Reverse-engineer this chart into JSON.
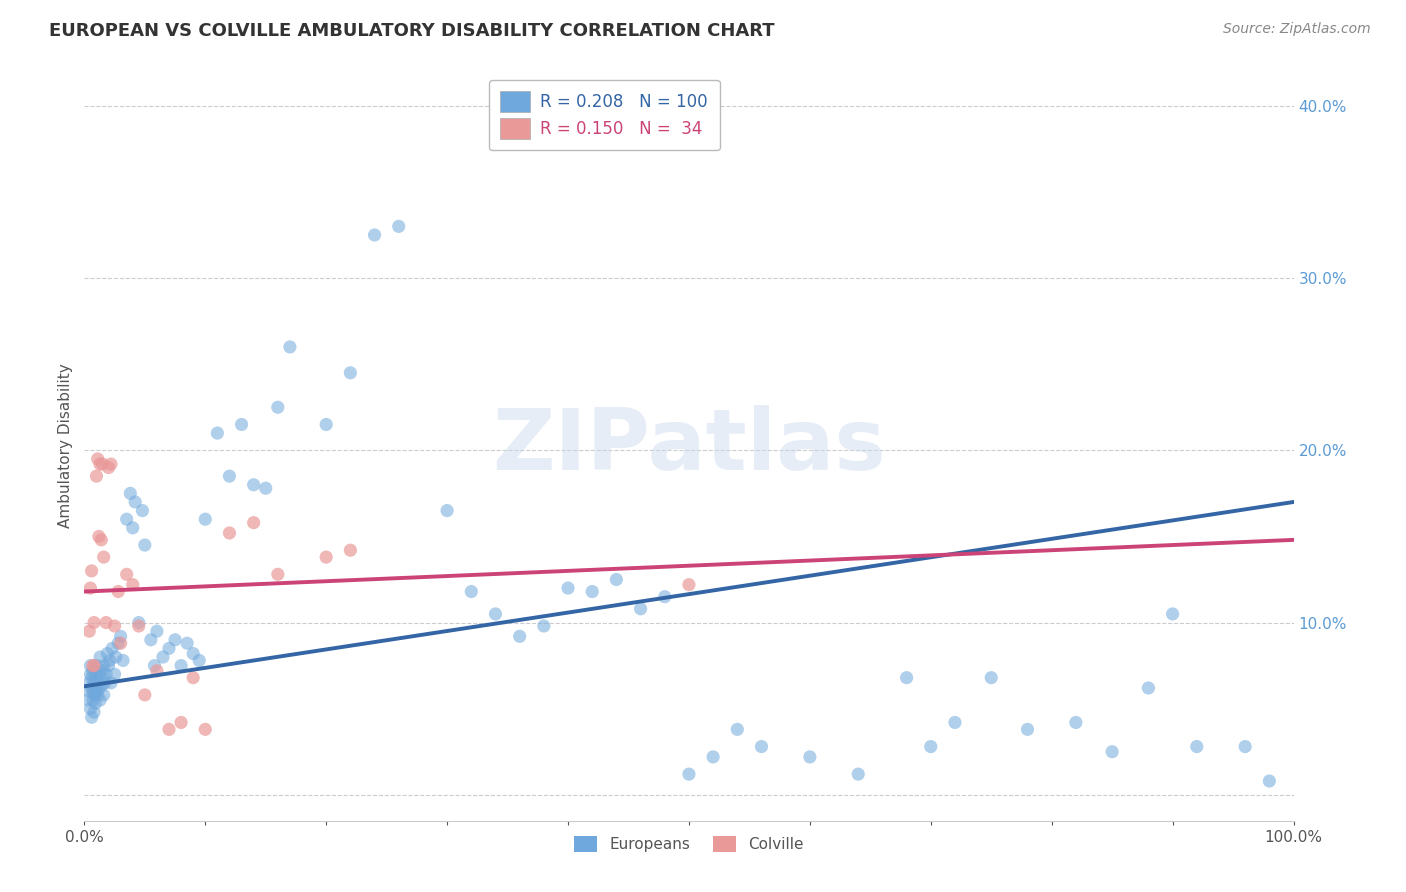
{
  "title": "EUROPEAN VS COLVILLE AMBULATORY DISABILITY CORRELATION CHART",
  "source": "Source: ZipAtlas.com",
  "ylabel": "Ambulatory Disability",
  "watermark": "ZIPatlas",
  "xlim": [
    0.0,
    1.0
  ],
  "ylim": [
    -0.015,
    0.42
  ],
  "xticks": [
    0.0,
    0.1,
    0.2,
    0.3,
    0.4,
    0.5,
    0.6,
    0.7,
    0.8,
    0.9,
    1.0
  ],
  "yticks": [
    0.0,
    0.1,
    0.2,
    0.3,
    0.4
  ],
  "grid_color": "#cccccc",
  "background_color": "#ffffff",
  "blue_color": "#6fa8dc",
  "pink_color": "#ea9999",
  "blue_line_color": "#3465a4",
  "pink_line_color": "#cc4477",
  "legend_R_blue": "0.208",
  "legend_N_blue": "100",
  "legend_R_pink": "0.150",
  "legend_N_pink": "34",
  "blue_trend_x0": 0.0,
  "blue_trend_y0": 0.063,
  "blue_trend_x1": 1.0,
  "blue_trend_y1": 0.17,
  "pink_trend_x0": 0.0,
  "pink_trend_y0": 0.118,
  "pink_trend_x1": 1.0,
  "pink_trend_y1": 0.148,
  "europeans_x": [
    0.003,
    0.004,
    0.004,
    0.005,
    0.005,
    0.005,
    0.006,
    0.006,
    0.006,
    0.007,
    0.007,
    0.007,
    0.008,
    0.008,
    0.008,
    0.009,
    0.009,
    0.009,
    0.01,
    0.01,
    0.011,
    0.011,
    0.012,
    0.012,
    0.013,
    0.013,
    0.014,
    0.015,
    0.015,
    0.016,
    0.016,
    0.017,
    0.018,
    0.019,
    0.02,
    0.021,
    0.022,
    0.023,
    0.025,
    0.026,
    0.028,
    0.03,
    0.032,
    0.035,
    0.038,
    0.04,
    0.042,
    0.045,
    0.048,
    0.05,
    0.055,
    0.058,
    0.06,
    0.065,
    0.07,
    0.075,
    0.08,
    0.085,
    0.09,
    0.095,
    0.1,
    0.11,
    0.12,
    0.13,
    0.14,
    0.15,
    0.16,
    0.17,
    0.2,
    0.22,
    0.24,
    0.26,
    0.3,
    0.32,
    0.34,
    0.36,
    0.38,
    0.4,
    0.42,
    0.44,
    0.46,
    0.48,
    0.5,
    0.52,
    0.54,
    0.56,
    0.6,
    0.64,
    0.68,
    0.7,
    0.72,
    0.75,
    0.78,
    0.82,
    0.85,
    0.88,
    0.9,
    0.92,
    0.96,
    0.98
  ],
  "europeans_y": [
    0.055,
    0.065,
    0.06,
    0.05,
    0.07,
    0.075,
    0.045,
    0.062,
    0.068,
    0.055,
    0.06,
    0.072,
    0.058,
    0.065,
    0.048,
    0.063,
    0.07,
    0.053,
    0.06,
    0.075,
    0.065,
    0.058,
    0.07,
    0.062,
    0.055,
    0.08,
    0.063,
    0.068,
    0.072,
    0.058,
    0.075,
    0.065,
    0.07,
    0.082,
    0.075,
    0.078,
    0.065,
    0.085,
    0.07,
    0.08,
    0.088,
    0.092,
    0.078,
    0.16,
    0.175,
    0.155,
    0.17,
    0.1,
    0.165,
    0.145,
    0.09,
    0.075,
    0.095,
    0.08,
    0.085,
    0.09,
    0.075,
    0.088,
    0.082,
    0.078,
    0.16,
    0.21,
    0.185,
    0.215,
    0.18,
    0.178,
    0.225,
    0.26,
    0.215,
    0.245,
    0.325,
    0.33,
    0.165,
    0.118,
    0.105,
    0.092,
    0.098,
    0.12,
    0.118,
    0.125,
    0.108,
    0.115,
    0.012,
    0.022,
    0.038,
    0.028,
    0.022,
    0.012,
    0.068,
    0.028,
    0.042,
    0.068,
    0.038,
    0.042,
    0.025,
    0.062,
    0.105,
    0.028,
    0.028,
    0.008
  ],
  "colville_x": [
    0.004,
    0.005,
    0.006,
    0.007,
    0.008,
    0.008,
    0.01,
    0.011,
    0.012,
    0.013,
    0.014,
    0.015,
    0.016,
    0.018,
    0.02,
    0.022,
    0.025,
    0.028,
    0.03,
    0.035,
    0.04,
    0.045,
    0.05,
    0.06,
    0.07,
    0.08,
    0.09,
    0.1,
    0.12,
    0.14,
    0.16,
    0.2,
    0.22,
    0.5
  ],
  "colville_y": [
    0.095,
    0.12,
    0.13,
    0.075,
    0.075,
    0.1,
    0.185,
    0.195,
    0.15,
    0.192,
    0.148,
    0.192,
    0.138,
    0.1,
    0.19,
    0.192,
    0.098,
    0.118,
    0.088,
    0.128,
    0.122,
    0.098,
    0.058,
    0.072,
    0.038,
    0.042,
    0.068,
    0.038,
    0.152,
    0.158,
    0.128,
    0.138,
    0.142,
    0.122
  ]
}
